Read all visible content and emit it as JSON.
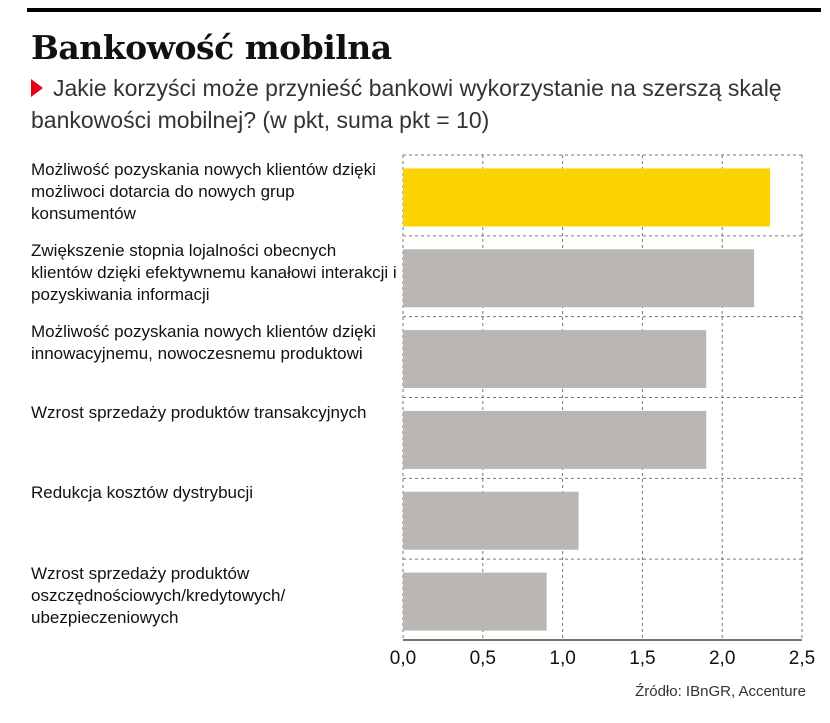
{
  "header": {
    "title": "Bankowość mobilna",
    "subtitle": "Jakie korzyści może przynieść bankowi wykorzystanie na szerszą skalę bankowości mobilnej? (w pkt, suma pkt = 10)"
  },
  "source": "Źródło: IBnGR, Accenture",
  "colors": {
    "highlight": "#fcd200",
    "bar": "#bab7b2",
    "grid": "#777777",
    "marker": "#e2001a"
  },
  "chart_data": {
    "type": "bar",
    "orientation": "horizontal",
    "title": "Bankowość mobilna",
    "subtitle": "Jakie korzyści może przynieść bankowi wykorzystanie na szerszą skalę bankowości mobilnej? (w pkt, suma pkt = 10)",
    "categories": [
      "Możliwość pozyskania nowych klientów dzięki możliwoci dotarcia do nowych grup konsumentów",
      "Zwiększenie stopnia lojalności obecnych klientów dzięki efektywnemu kanałowi interakcji i pozyskiwania informacji",
      "Możliwość pozyskania nowych klientów dzięki innowacyjnemu, nowoczesnemu produktowi",
      "Wzrost sprzedaży produktów transakcyjnych",
      "Redukcja kosztów dystrybucji",
      "Wzrost sprzedaży produktów oszczędnościowych/kredytowych/ ubezpieczeniowych"
    ],
    "values": [
      2.3,
      2.2,
      1.9,
      1.9,
      1.1,
      0.9
    ],
    "highlight_index": 0,
    "xlim": [
      0,
      2.5
    ],
    "xticks": [
      "0,0",
      "0,5",
      "1,0",
      "1,5",
      "2,0",
      "2,5"
    ],
    "xtick_values": [
      0,
      0.5,
      1.0,
      1.5,
      2.0,
      2.5
    ],
    "grid": true
  }
}
